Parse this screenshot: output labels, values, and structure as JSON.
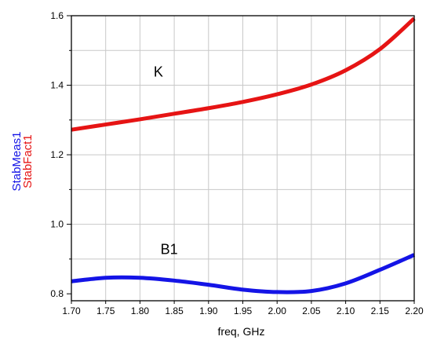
{
  "chart_data": {
    "type": "line",
    "xlabel": "freq, GHz",
    "ylabels": [
      {
        "text": "StabMeas1",
        "color": "#1414e6"
      },
      {
        "text": "StabFact1",
        "color": "#e61414"
      }
    ],
    "xlim": [
      1.7,
      2.2
    ],
    "ylim": [
      0.78,
      1.6
    ],
    "x_ticks": [
      "1.70",
      "1.75",
      "1.80",
      "1.85",
      "1.90",
      "1.95",
      "2.00",
      "2.05",
      "2.10",
      "2.15",
      "2.20"
    ],
    "y_ticks": [
      "0.8",
      "1.0",
      "1.2",
      "1.4",
      "1.6"
    ],
    "y_tick_values": [
      0.8,
      1.0,
      1.2,
      1.4,
      1.6
    ],
    "grid": true,
    "x": [
      1.7,
      1.75,
      1.8,
      1.85,
      1.9,
      1.95,
      2.0,
      2.05,
      2.1,
      2.15,
      2.2
    ],
    "series": [
      {
        "id": "StabFact1",
        "color": "#e61414",
        "values": [
          1.272,
          1.287,
          1.302,
          1.318,
          1.334,
          1.352,
          1.374,
          1.402,
          1.443,
          1.504,
          1.592
        ]
      },
      {
        "id": "StabMeas1",
        "color": "#1414e6",
        "values": [
          0.836,
          0.846,
          0.846,
          0.838,
          0.826,
          0.812,
          0.805,
          0.808,
          0.83,
          0.869,
          0.912
        ]
      }
    ],
    "annotations": [
      {
        "text": "K",
        "x": 1.82,
        "y": 1.425
      },
      {
        "text": "B1",
        "x": 1.83,
        "y": 0.914
      }
    ]
  }
}
